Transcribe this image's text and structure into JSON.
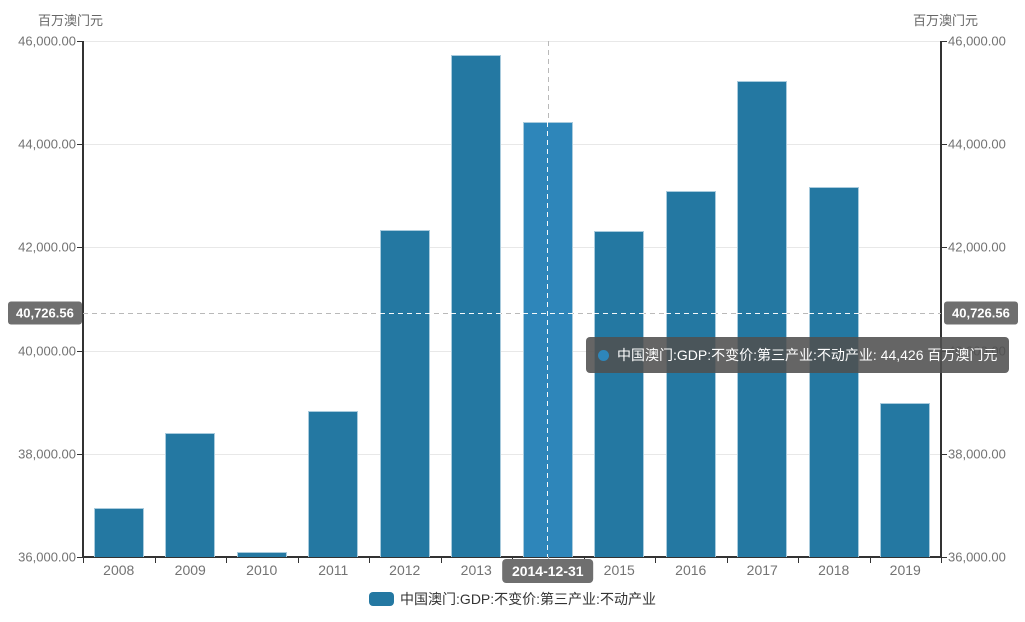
{
  "chart_data": {
    "type": "bar",
    "title": "",
    "axis_unit_left": "百万澳门元",
    "axis_unit_right": "百万澳门元",
    "categories": [
      "2008",
      "2009",
      "2010",
      "2011",
      "2012",
      "2013",
      "2014",
      "2015",
      "2016",
      "2017",
      "2018",
      "2019"
    ],
    "series": [
      {
        "name": "中国澳门:GDP:不变价:第三产业:不动产业",
        "values": [
          36950,
          38400,
          36100,
          38830,
          42340,
          45730,
          44426,
          42320,
          43090,
          45230,
          43170,
          38980
        ]
      }
    ],
    "ylim": [
      36000,
      46000
    ],
    "ytick_step": 2000,
    "ytick_labels": [
      "46,000.00",
      "44,000.00",
      "42,000.00",
      "40,000.00",
      "38,000.00",
      "36,000.00"
    ],
    "grid": true,
    "legend_position": "bottom",
    "legend_label": "中国澳门:GDP:不变价:第三产业:不动产业",
    "markline": {
      "value": 40726.56,
      "label": "40,726.56"
    },
    "highlight": {
      "category_index": 6,
      "axis_label": "2014-12-31",
      "value": 44426,
      "value_label": "44,426"
    },
    "tooltip": {
      "text": "中国澳门:GDP:不变价:第三产业:不动产业: 44,426 百万澳门元"
    },
    "colors": {
      "bar": "#2478a2",
      "bar_highlight": "#2e86ba",
      "bar_border": "#a9cbdd",
      "grid_line": "#e8e8e8",
      "axis_line": "#333333",
      "tick_text": "#737373",
      "markline_dash": "#b9b9b9",
      "label_box_bg": "#6f6f6f",
      "tooltip_bg": "rgba(80,80,80,0.88)",
      "legend_text": "#333333"
    }
  }
}
